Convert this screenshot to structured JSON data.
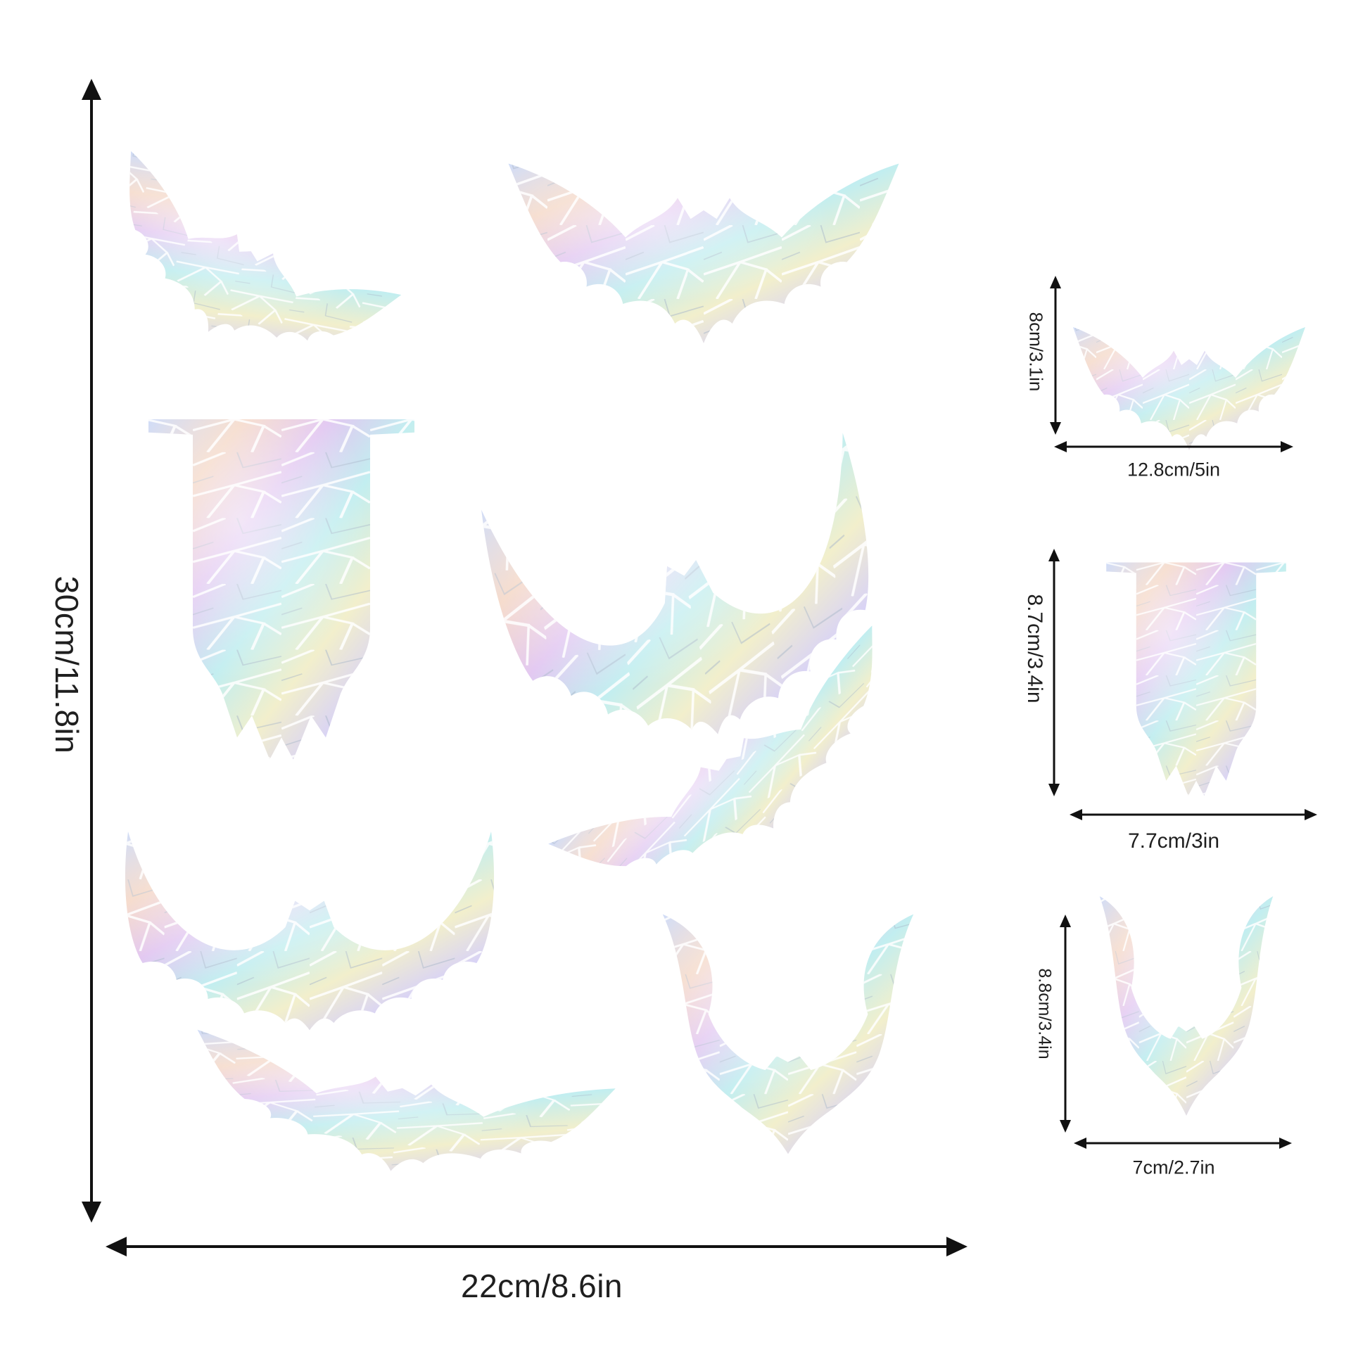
{
  "product": {
    "sheet_dimensions": {
      "height": "30cm/11.8in",
      "width": "22cm/8.6in"
    },
    "samples": [
      {
        "height": "8cm/3.1in",
        "width": "12.8cm/5in"
      },
      {
        "height": "8.7cm/3.4in",
        "width": "7.7cm/3in"
      },
      {
        "height": "8.8cm/3.4in",
        "width": "7cm/2.7in"
      }
    ]
  },
  "colors": {
    "background": "#ffffff",
    "arrow": "#111111",
    "iridescent": [
      "#c9d8f7",
      "#e3c6f0",
      "#f6d5c2",
      "#bfeff0",
      "#f3f0c9",
      "#d9d2fb"
    ]
  },
  "icons": [
    "bat-sticker-icon",
    "double-arrow-icon"
  ]
}
